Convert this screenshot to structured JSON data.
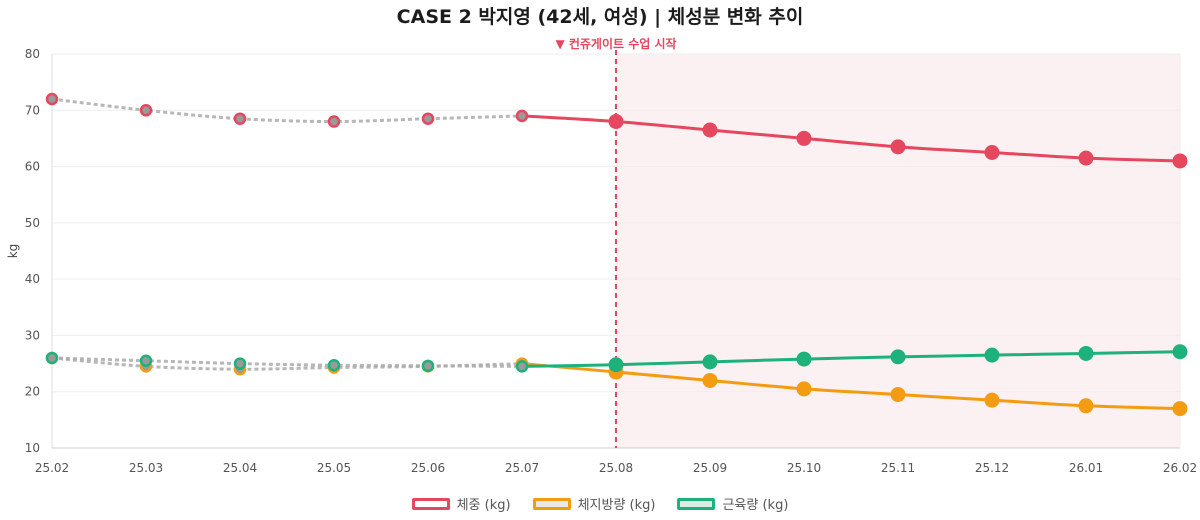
{
  "chart_data": {
    "type": "line",
    "title": "CASE 2  박지영 (42세, 여성)  |  체성분 변화 추이",
    "xlabel": "",
    "ylabel": "kg",
    "ylim": [
      10,
      80
    ],
    "yticks": [
      10,
      20,
      30,
      40,
      50,
      60,
      70,
      80
    ],
    "categories": [
      "25.02",
      "25.03",
      "25.04",
      "25.05",
      "25.06",
      "25.07",
      "25.08",
      "25.09",
      "25.10",
      "25.11",
      "25.12",
      "26.01",
      "26.02"
    ],
    "marker": {
      "label": "▼ 컨쥬게이트 수업 시작",
      "category": "25.08",
      "color": "#e5475f"
    },
    "shaded_from": "25.08",
    "shade_color": "#fbf0f2",
    "pre_color": "#aaaaaa",
    "series": [
      {
        "name": "체중 (kg)",
        "color": "#e5475f",
        "fill": "#ffffff",
        "values": [
          72,
          70,
          68.5,
          68,
          68.5,
          69,
          68,
          66.5,
          65,
          63.5,
          62.5,
          61.5,
          61
        ]
      },
      {
        "name": "체지방량 (kg)",
        "color": "#f39c12",
        "fill": "#e8e8e8",
        "values": [
          26,
          24.5,
          24,
          24.3,
          24.5,
          25,
          23.5,
          22,
          20.5,
          19.5,
          18.5,
          17.5,
          17
        ]
      },
      {
        "name": "근육량 (kg)",
        "color": "#1db27b",
        "fill": "#dcebe4",
        "values": [
          26,
          25.5,
          25,
          24.7,
          24.6,
          24.5,
          24.8,
          25.3,
          25.8,
          26.2,
          26.5,
          26.8,
          27.1
        ]
      }
    ]
  }
}
